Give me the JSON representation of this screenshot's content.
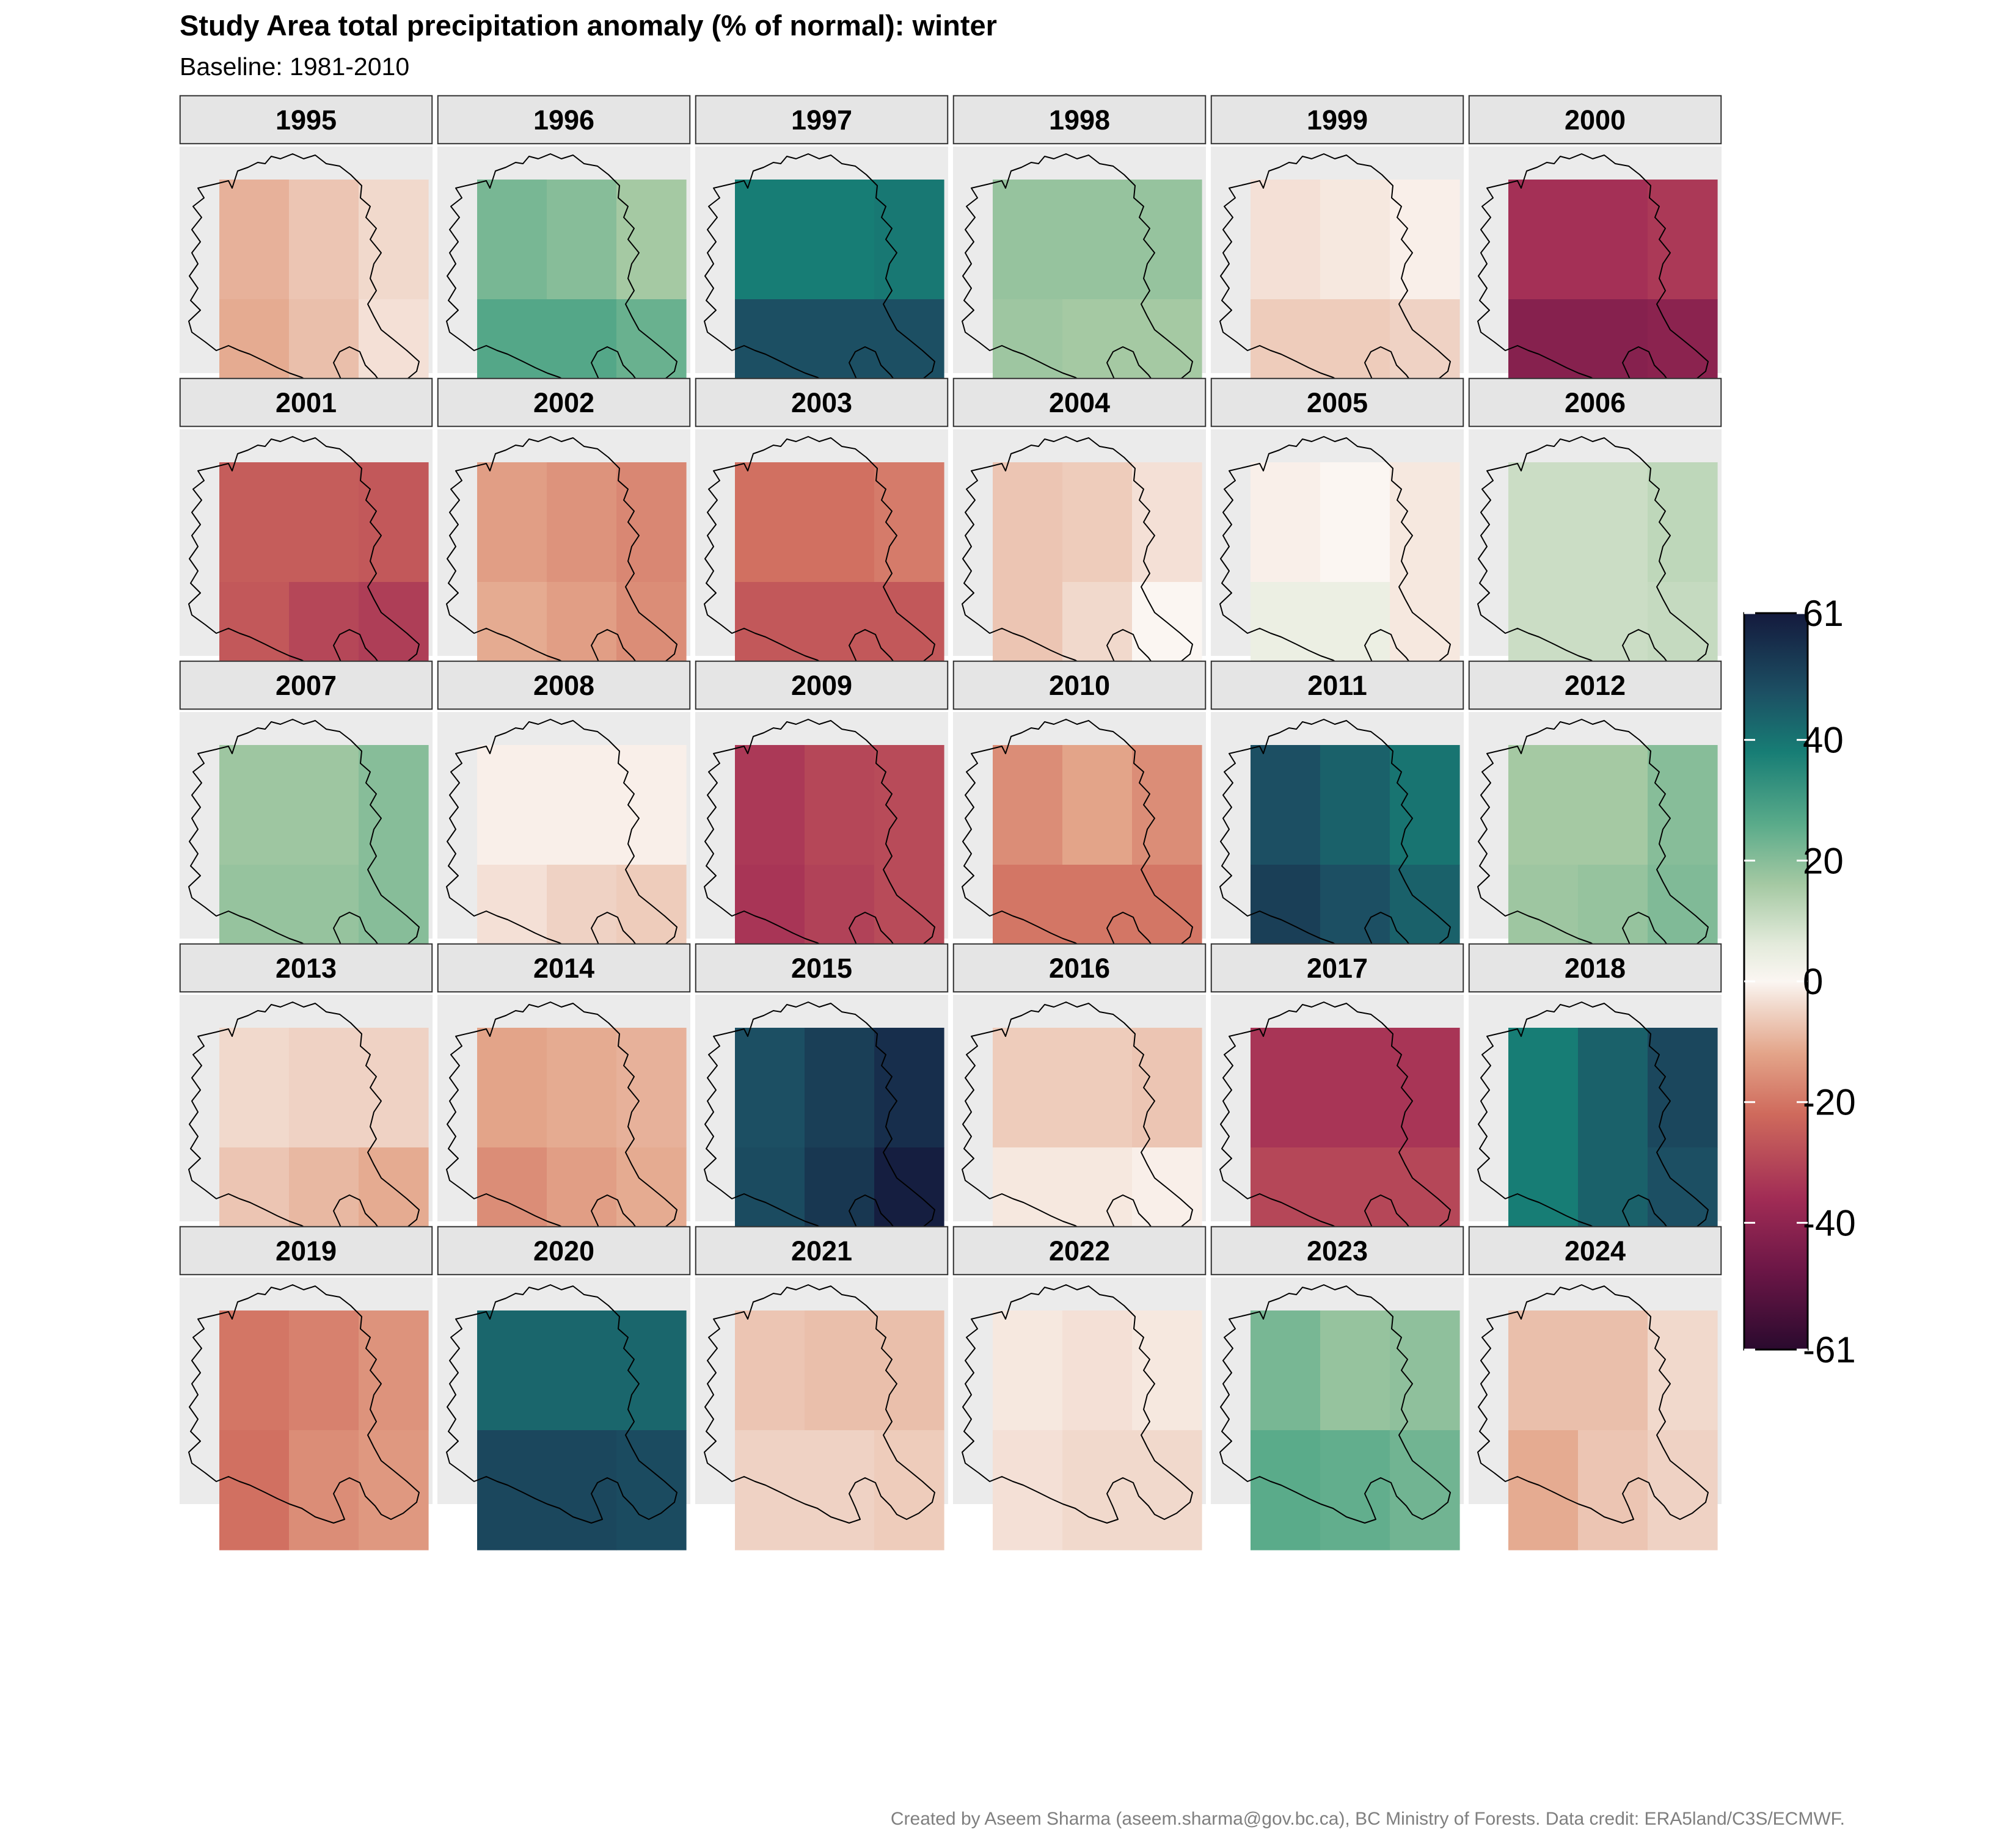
{
  "title": "Study Area total precipitation anomaly (% of normal): winter",
  "subtitle": "Baseline: 1981-2010",
  "caption": "Created by Aseem Sharma (aseem.sharma@gov.bc.ca), BC Ministry of Forests. Data credit: ERA5land/C3S/ECMWF.",
  "chart_data": {
    "type": "heatmap",
    "facet_by": "year",
    "grid": "2 rows x 3 columns of cells per panel, cell values in % anomaly, listed row by row (top row first, left to right)",
    "colorbar": {
      "min": -61,
      "max": 61,
      "ticks": [
        61,
        40,
        20,
        0,
        -20,
        -40,
        -61
      ],
      "tick_labels": [
        "61",
        "40",
        "20",
        "0",
        "-20",
        "-40",
        "-61"
      ],
      "stops": [
        {
          "v": -61,
          "c": "#2a0a2e"
        },
        {
          "v": -48,
          "c": "#6b1646"
        },
        {
          "v": -36,
          "c": "#a12c55"
        },
        {
          "v": -22,
          "c": "#cf6a5c"
        },
        {
          "v": -12,
          "c": "#e3a489"
        },
        {
          "v": -4,
          "c": "#f1d9cc"
        },
        {
          "v": 0,
          "c": "#fbf6f2"
        },
        {
          "v": 6,
          "c": "#e4ebdc"
        },
        {
          "v": 16,
          "c": "#a5c9a3"
        },
        {
          "v": 26,
          "c": "#5aab8a"
        },
        {
          "v": 38,
          "c": "#177d75"
        },
        {
          "v": 48,
          "c": "#1c4f63"
        },
        {
          "v": 61,
          "c": "#141a3d"
        }
      ]
    },
    "panels": [
      {
        "year": "1995",
        "cells": [
          [
            -10,
            -7,
            -4
          ],
          [
            -11,
            -8,
            -3
          ]
        ]
      },
      {
        "year": "1996",
        "cells": [
          [
            22,
            20,
            16
          ],
          [
            27,
            27,
            24
          ]
        ]
      },
      {
        "year": "1997",
        "cells": [
          [
            38,
            38,
            39
          ],
          [
            48,
            48,
            48
          ]
        ]
      },
      {
        "year": "1998",
        "cells": [
          [
            18,
            18,
            18
          ],
          [
            17,
            16,
            16
          ]
        ]
      },
      {
        "year": "1999",
        "cells": [
          [
            -3,
            -2,
            -1
          ],
          [
            -6,
            -6,
            -5
          ]
        ]
      },
      {
        "year": "2000",
        "cells": [
          [
            -35,
            -35,
            -33
          ],
          [
            -42,
            -42,
            -41
          ]
        ]
      },
      {
        "year": "2001",
        "cells": [
          [
            -25,
            -25,
            -26
          ],
          [
            -26,
            -30,
            -32
          ]
        ]
      },
      {
        "year": "2002",
        "cells": [
          [
            -13,
            -15,
            -17
          ],
          [
            -11,
            -13,
            -16
          ]
        ]
      },
      {
        "year": "2003",
        "cells": [
          [
            -21,
            -21,
            -19
          ],
          [
            -26,
            -26,
            -26
          ]
        ]
      },
      {
        "year": "2004",
        "cells": [
          [
            -7,
            -6,
            -3
          ],
          [
            -7,
            -4,
            0
          ]
        ]
      },
      {
        "year": "2005",
        "cells": [
          [
            -1,
            0,
            -2
          ],
          [
            4,
            4,
            -2
          ]
        ]
      },
      {
        "year": "2006",
        "cells": [
          [
            10,
            10,
            12
          ],
          [
            10,
            10,
            11
          ]
        ]
      },
      {
        "year": "2007",
        "cells": [
          [
            17,
            17,
            20
          ],
          [
            18,
            18,
            20
          ]
        ]
      },
      {
        "year": "2008",
        "cells": [
          [
            -1,
            -1,
            -1
          ],
          [
            -3,
            -5,
            -6
          ]
        ]
      },
      {
        "year": "2009",
        "cells": [
          [
            -33,
            -30,
            -29
          ],
          [
            -34,
            -31,
            -29
          ]
        ]
      },
      {
        "year": "2010",
        "cells": [
          [
            -16,
            -12,
            -16
          ],
          [
            -20,
            -20,
            -20
          ]
        ]
      },
      {
        "year": "2011",
        "cells": [
          [
            48,
            44,
            40
          ],
          [
            52,
            48,
            44
          ]
        ]
      },
      {
        "year": "2012",
        "cells": [
          [
            16,
            16,
            20
          ],
          [
            17,
            18,
            21
          ]
        ]
      },
      {
        "year": "2013",
        "cells": [
          [
            -4,
            -5,
            -5
          ],
          [
            -7,
            -9,
            -11
          ]
        ]
      },
      {
        "year": "2014",
        "cells": [
          [
            -12,
            -11,
            -10
          ],
          [
            -16,
            -13,
            -11
          ]
        ]
      },
      {
        "year": "2015",
        "cells": [
          [
            48,
            52,
            56
          ],
          [
            49,
            54,
            60
          ]
        ]
      },
      {
        "year": "2016",
        "cells": [
          [
            -6,
            -6,
            -7
          ],
          [
            -2,
            -2,
            -1
          ]
        ]
      },
      {
        "year": "2017",
        "cells": [
          [
            -34,
            -34,
            -34
          ],
          [
            -30,
            -30,
            -30
          ]
        ]
      },
      {
        "year": "2018",
        "cells": [
          [
            38,
            44,
            50
          ],
          [
            38,
            44,
            48
          ]
        ]
      },
      {
        "year": "2019",
        "cells": [
          [
            -20,
            -18,
            -15
          ],
          [
            -21,
            -16,
            -14
          ]
        ]
      },
      {
        "year": "2020",
        "cells": [
          [
            43,
            43,
            43
          ],
          [
            50,
            50,
            49
          ]
        ]
      },
      {
        "year": "2021",
        "cells": [
          [
            -7,
            -8,
            -8
          ],
          [
            -5,
            -5,
            -6
          ]
        ]
      },
      {
        "year": "2022",
        "cells": [
          [
            -2,
            -3,
            -2
          ],
          [
            -3,
            -4,
            -4
          ]
        ]
      },
      {
        "year": "2023",
        "cells": [
          [
            22,
            18,
            19
          ],
          [
            26,
            25,
            23
          ]
        ]
      },
      {
        "year": "2024",
        "cells": [
          [
            -8,
            -8,
            -4
          ],
          [
            -11,
            -7,
            -5
          ]
        ]
      }
    ]
  }
}
